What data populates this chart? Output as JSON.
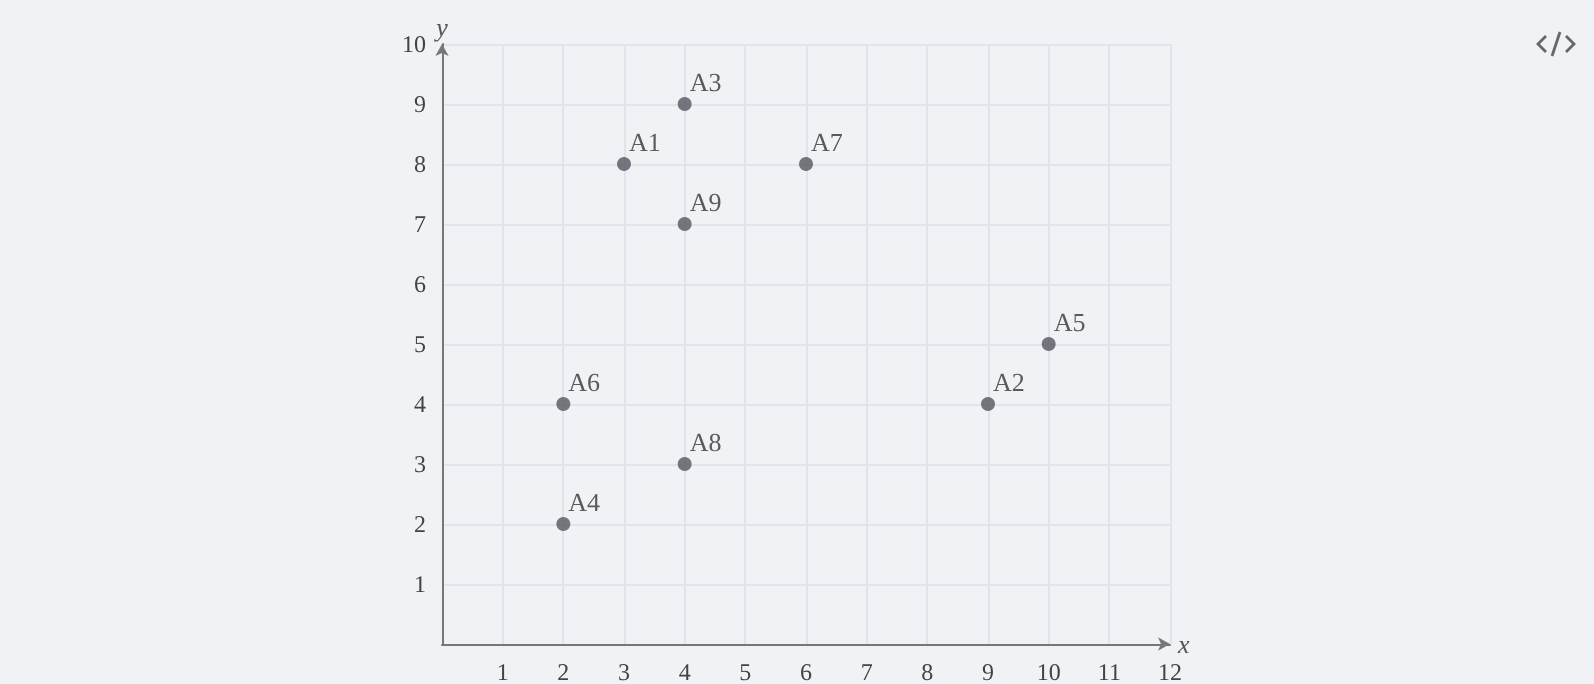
{
  "chart_data": {
    "type": "scatter",
    "xlabel": "x",
    "ylabel": "y",
    "x": [
      3,
      9,
      4,
      2,
      10,
      2,
      6,
      4,
      4
    ],
    "series": [
      {
        "color": "#55555f",
        "values": [
          8,
          4,
          9,
          2,
          5,
          4,
          8,
          3,
          7
        ],
        "value_labels": [
          "A1",
          "A2",
          "A3",
          "A4",
          "A5",
          "A6",
          "A7",
          "A8",
          "A9"
        ]
      }
    ],
    "xlim": [
      0,
      12
    ],
    "xticks": [
      1,
      2,
      3,
      4,
      5,
      6,
      7,
      8,
      9,
      10,
      11,
      12
    ],
    "ylim": [
      0,
      10
    ],
    "yticks": [
      1,
      2,
      3,
      4,
      5,
      6,
      7,
      8,
      9,
      10
    ],
    "grid": true,
    "marker": "circle"
  }
}
